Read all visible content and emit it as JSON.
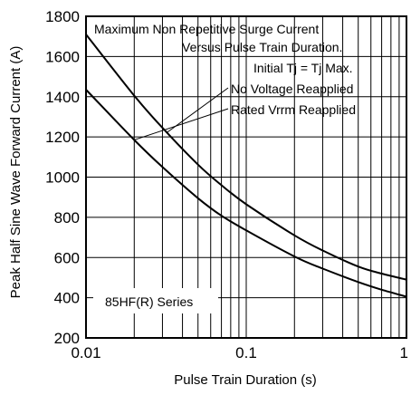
{
  "chart_data": {
    "type": "line",
    "xlabel": "Pulse Train Duration (s)",
    "ylabel": "Peak Half Sine Wave Forward Current (A)",
    "x_scale": "log",
    "xlim": [
      0.01,
      1
    ],
    "ylim": [
      200,
      1800
    ],
    "x_ticks": [
      0.01,
      0.1,
      1
    ],
    "x_tick_labels": [
      "0.01",
      "0.1",
      "1"
    ],
    "y_ticks": [
      200,
      400,
      600,
      800,
      1000,
      1200,
      1400,
      1600,
      1800
    ],
    "y_tick_labels": [
      "200",
      "400",
      "600",
      "800",
      "1000",
      "1200",
      "1400",
      "1600",
      "1800"
    ],
    "grid": true,
    "series": [
      {
        "name": "No Voltage Reapplied",
        "x": [
          0.01,
          0.02,
          0.03,
          0.05,
          0.07,
          0.1,
          0.2,
          0.3,
          0.5,
          0.7,
          1.0
        ],
        "y": [
          1710,
          1405,
          1245,
          1062,
          960,
          865,
          710,
          635,
          555,
          520,
          490
        ]
      },
      {
        "name": "Rated Vrrm Reapplied",
        "x": [
          0.01,
          0.02,
          0.03,
          0.05,
          0.07,
          0.1,
          0.2,
          0.3,
          0.5,
          0.7,
          1.0
        ],
        "y": [
          1435,
          1185,
          1050,
          895,
          808,
          735,
          605,
          545,
          478,
          440,
          405
        ]
      }
    ],
    "annotations": [
      "Maximum Non Repetitive Surge Current",
      "Versus Pulse Train Duration.",
      "Initial Tj  = Tj  Max."
    ],
    "series_label": "85HF(R) Series"
  }
}
